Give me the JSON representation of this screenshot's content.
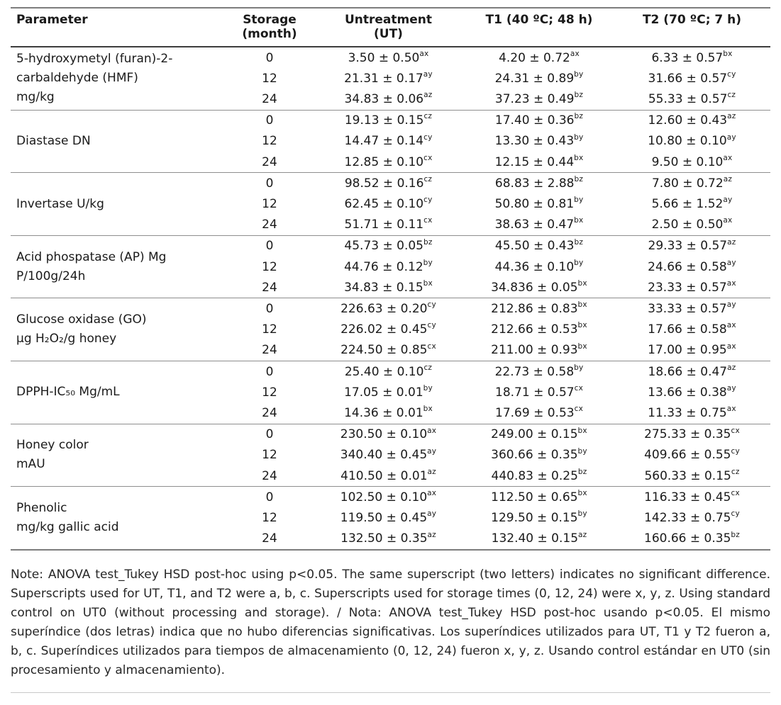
{
  "table": {
    "headers": {
      "parameter": "Parameter",
      "storage": "Storage\n(month)",
      "untreatment": "Untreatment\n(UT)",
      "t1": "T1 (40 ºC; 48 h)",
      "t2": "T2 (70 ºC; 7 h)"
    },
    "groups": [
      {
        "parameter": "5-hydroxymetyl (furan)-2-\ncarbaldehyde (HMF)\nmg/kg",
        "rows": [
          {
            "storage": "0",
            "ut": {
              "v": "3.50 ± 0.50",
              "s": "ax"
            },
            "t1": {
              "v": "4.20 ± 0.72",
              "s": "ax"
            },
            "t2": {
              "v": "6.33 ± 0.57",
              "s": "bx"
            }
          },
          {
            "storage": "12",
            "ut": {
              "v": "21.31 ± 0.17",
              "s": "ay"
            },
            "t1": {
              "v": "24.31 ± 0.89",
              "s": "by"
            },
            "t2": {
              "v": "31.66 ± 0.57",
              "s": "cy"
            }
          },
          {
            "storage": "24",
            "ut": {
              "v": "34.83 ± 0.06",
              "s": "az"
            },
            "t1": {
              "v": "37.23 ± 0.49",
              "s": "bz"
            },
            "t2": {
              "v": "55.33 ± 0.57",
              "s": "cz"
            }
          }
        ]
      },
      {
        "parameter": "Diastase DN",
        "rows": [
          {
            "storage": "0",
            "ut": {
              "v": "19.13 ± 0.15",
              "s": "cz"
            },
            "t1": {
              "v": "17.40 ± 0.36",
              "s": "bz"
            },
            "t2": {
              "v": "12.60 ± 0.43",
              "s": "az"
            }
          },
          {
            "storage": "12",
            "ut": {
              "v": "14.47 ± 0.14",
              "s": "cy"
            },
            "t1": {
              "v": "13.30 ± 0.43",
              "s": "by"
            },
            "t2": {
              "v": "10.80 ± 0.10",
              "s": "ay"
            }
          },
          {
            "storage": "24",
            "ut": {
              "v": "12.85 ± 0.10",
              "s": "cx"
            },
            "t1": {
              "v": "12.15 ± 0.44",
              "s": "bx"
            },
            "t2": {
              "v": "9.50 ± 0.10",
              "s": "ax"
            }
          }
        ]
      },
      {
        "parameter": "Invertase U/kg",
        "rows": [
          {
            "storage": "0",
            "ut": {
              "v": "98.52 ± 0.16",
              "s": "cz"
            },
            "t1": {
              "v": "68.83 ± 2.88",
              "s": "bz"
            },
            "t2": {
              "v": "7.80 ± 0.72",
              "s": "az"
            }
          },
          {
            "storage": "12",
            "ut": {
              "v": "62.45 ± 0.10",
              "s": "cy"
            },
            "t1": {
              "v": "50.80 ± 0.81",
              "s": "by"
            },
            "t2": {
              "v": "5.66 ± 1.52",
              "s": "ay"
            }
          },
          {
            "storage": "24",
            "ut": {
              "v": "51.71 ± 0.11",
              "s": "cx"
            },
            "t1": {
              "v": "38.63 ± 0.47",
              "s": "bx"
            },
            "t2": {
              "v": "2.50 ± 0.50",
              "s": "ax"
            }
          }
        ]
      },
      {
        "parameter": "Acid phospatase (AP) Mg\nP/100g/24h",
        "rows": [
          {
            "storage": "0",
            "ut": {
              "v": "45.73 ± 0.05",
              "s": "bz"
            },
            "t1": {
              "v": "45.50 ± 0.43",
              "s": "bz"
            },
            "t2": {
              "v": "29.33 ± 0.57",
              "s": "az"
            }
          },
          {
            "storage": "12",
            "ut": {
              "v": "44.76 ± 0.12",
              "s": "by"
            },
            "t1": {
              "v": "44.36 ± 0.10",
              "s": "by"
            },
            "t2": {
              "v": "24.66 ± 0.58",
              "s": "ay"
            }
          },
          {
            "storage": "24",
            "ut": {
              "v": "34.83 ± 0.15",
              "s": "bx"
            },
            "t1": {
              "v": "34.836 ± 0.05",
              "s": "bx"
            },
            "t2": {
              "v": "23.33 ± 0.57",
              "s": "ax"
            }
          }
        ]
      },
      {
        "parameter": "Glucose oxidase (GO)\nµg H₂O₂/g honey",
        "rows": [
          {
            "storage": "0",
            "ut": {
              "v": "226.63 ± 0.20",
              "s": "cy"
            },
            "t1": {
              "v": "212.86 ± 0.83",
              "s": "bx"
            },
            "t2": {
              "v": "33.33 ± 0.57",
              "s": "ay"
            }
          },
          {
            "storage": "12",
            "ut": {
              "v": "226.02 ± 0.45",
              "s": "cy"
            },
            "t1": {
              "v": "212.66 ± 0.53",
              "s": "bx"
            },
            "t2": {
              "v": "17.66 ± 0.58",
              "s": "ax"
            }
          },
          {
            "storage": "24",
            "ut": {
              "v": "224.50 ± 0.85",
              "s": "cx"
            },
            "t1": {
              "v": "211.00 ± 0.93",
              "s": "bx"
            },
            "t2": {
              "v": "17.00 ± 0.95",
              "s": "ax"
            }
          }
        ]
      },
      {
        "parameter": "DPPH-IC₅₀ Mg/mL",
        "rows": [
          {
            "storage": "0",
            "ut": {
              "v": "25.40 ± 0.10",
              "s": "cz"
            },
            "t1": {
              "v": "22.73 ± 0.58",
              "s": "by"
            },
            "t2": {
              "v": "18.66 ± 0.47",
              "s": "az"
            }
          },
          {
            "storage": "12",
            "ut": {
              "v": "17.05 ± 0.01",
              "s": "by"
            },
            "t1": {
              "v": "18.71 ± 0.57",
              "s": "cx"
            },
            "t2": {
              "v": "13.66 ± 0.38",
              "s": "ay"
            }
          },
          {
            "storage": "24",
            "ut": {
              "v": "14.36 ± 0.01",
              "s": "bx"
            },
            "t1": {
              "v": "17.69 ± 0.53",
              "s": "cx"
            },
            "t2": {
              "v": "11.33 ± 0.75",
              "s": "ax"
            }
          }
        ]
      },
      {
        "parameter": "Honey color\nmAU",
        "rows": [
          {
            "storage": "0",
            "ut": {
              "v": "230.50 ± 0.10",
              "s": "ax"
            },
            "t1": {
              "v": "249.00 ± 0.15",
              "s": "bx"
            },
            "t2": {
              "v": "275.33 ± 0.35",
              "s": "cx"
            }
          },
          {
            "storage": "12",
            "ut": {
              "v": "340.40 ± 0.45",
              "s": "ay"
            },
            "t1": {
              "v": "360.66 ± 0.35",
              "s": "by"
            },
            "t2": {
              "v": "409.66 ± 0.55",
              "s": "cy"
            }
          },
          {
            "storage": "24",
            "ut": {
              "v": "410.50 ± 0.01",
              "s": "az"
            },
            "t1": {
              "v": "440.83 ± 0.25",
              "s": "bz"
            },
            "t2": {
              "v": "560.33 ± 0.15",
              "s": "cz"
            }
          }
        ]
      },
      {
        "parameter": "Phenolic\nmg/kg gallic acid",
        "rows": [
          {
            "storage": "0",
            "ut": {
              "v": "102.50 ± 0.10",
              "s": "ax"
            },
            "t1": {
              "v": "112.50 ± 0.65",
              "s": "bx"
            },
            "t2": {
              "v": "116.33 ± 0.45",
              "s": "cx"
            }
          },
          {
            "storage": "12",
            "ut": {
              "v": "119.50 ± 0.45",
              "s": "ay"
            },
            "t1": {
              "v": "129.50 ± 0.15",
              "s": "by"
            },
            "t2": {
              "v": "142.33 ± 0.75",
              "s": "cy"
            }
          },
          {
            "storage": "24",
            "ut": {
              "v": "132.50 ± 0.35",
              "s": "az"
            },
            "t1": {
              "v": "132.40 ± 0.15",
              "s": "az"
            },
            "t2": {
              "v": "160.66 ± 0.35",
              "s": "bz"
            }
          }
        ]
      }
    ]
  },
  "note": {
    "text": "Note: ANOVA test_Tukey HSD post-hoc using p<0.05. The same superscript (two letters) indicates no significant difference. Superscripts used for UT, T1, and T2 were a, b, c. Superscripts used for storage times (0, 12, 24) were x, y, z. Using standard control on UT0 (without processing and storage). / Nota: ANOVA test_Tukey HSD post-hoc usando p<0.05. El mismo superíndice (dos letras) indica que no hubo diferencias significativas. Los superíndices utilizados para UT, T1 y T2 fueron a, b, c. Superíndices utilizados para tiempos de almacenamiento (0, 12, 24) fueron x, y, z. Usando control estándar en UT0 (sin procesamiento y almacenamiento)."
  }
}
